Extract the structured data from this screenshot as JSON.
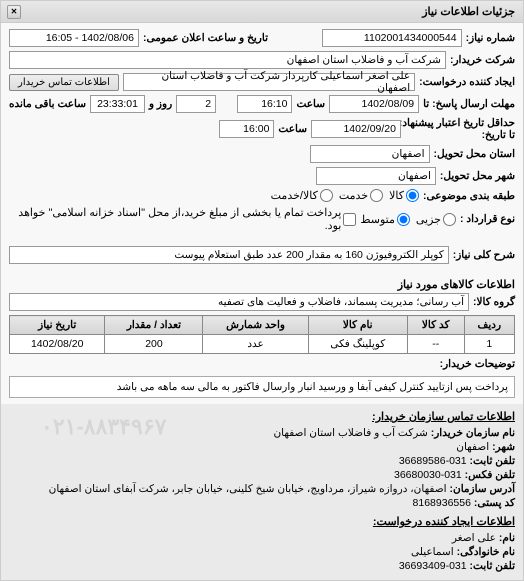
{
  "panel": {
    "title": "جزئیات اطلاعات نیاز"
  },
  "header": {
    "req_no_label": "شماره نیاز:",
    "req_no": "1102001434000544",
    "pub_dt_label": "تاریخ و ساعت اعلان عمومی:",
    "pub_dt": "1402/08/06 - 16:05",
    "buyer_label": "شرکت خریدار:",
    "buyer": "شرکت آب و فاضلاب استان اصفهان",
    "creator_label": "ایجاد کننده درخواست:",
    "creator": "علی اصغر اسماعیلی کارپرداز شرکت آب و فاضلاب استان اصفهان",
    "contact_btn": "اطلاعات تماس خریدار",
    "deadline_label": "مهلت ارسال پاسخ: تا",
    "deadline_date": "1402/08/09",
    "deadline_time_label": "ساعت",
    "deadline_time": "16:10",
    "remain_days": "2",
    "remain_days_label": "روز و",
    "remain_time": "23:33:01",
    "remain_tail": "ساعت باقی مانده",
    "min_valid_label": "حداقل تاریخ اعتبار پیشنهاد:",
    "min_valid_label_tail": "تا تاریخ:",
    "min_valid_date": "1402/09/20",
    "min_valid_time_label": "ساعت",
    "min_valid_time": "16:00",
    "deliver_prov_label": "استان محل تحویل:",
    "deliver_prov": "اصفهان",
    "deliver_city_label": "شهر محل تحویل:",
    "deliver_city": "اصفهان",
    "budget_label": "طبقه بندی موضوعی:",
    "budget_opts": {
      "goods": "کالا",
      "service": "خدمت",
      "goods_service": "کالا/خدمت"
    },
    "amount_label": "نوع قرارداد :",
    "amount_opts": {
      "small": "جزیی",
      "medium": "متوسط"
    },
    "amount_note": "پرداخت تمام یا بخشی از مبلغ خرید،از محل \"اسناد خزانه اسلامی\" خواهد بود."
  },
  "need": {
    "title_label": "شرح کلی نیاز:",
    "title": "کوپلر الکتروفیوژن 160 به مقدار 200 عدد طبق استعلام پیوست"
  },
  "goods": {
    "section": "اطلاعات کالاهای مورد نیاز",
    "group_label": "گروه کالا:",
    "group": "آب رسانی؛ مدیریت پسماند، فاضلاب و فعالیت های تصفیه",
    "columns": [
      "ردیف",
      "کد کالا",
      "نام کالا",
      "واحد شمارش",
      "تعداد / مقدار",
      "تاریخ نیاز"
    ],
    "rows": [
      [
        "1",
        "--",
        "کوپلینگ فکی",
        "عدد",
        "200",
        "1402/08/20"
      ]
    ]
  },
  "buyer_remark": {
    "label": "توضیحات خریدار:",
    "text": "پرداخت پس ازتایید کنترل کیفی آبفا و ورسید انبار وارسال فاکتور به مالی سه ماهه می باشد"
  },
  "contact": {
    "section": "اطلاعات تماس سازمان خریدار:",
    "org_label": "نام سازمان خریدار:",
    "org": "شرکت آب و فاضلاب استان اصفهان",
    "city_label": "شهر:",
    "city": "اصفهان",
    "tel_label": "تلفن ثابت:",
    "tel": "031-36689586",
    "fax_label": "تلفن فکس:",
    "fax": "031-36680030",
    "addr_label": "آدرس سازمان:",
    "addr": "اصفهان، دروازه شیراز، مرداویج، خیابان شیخ کلینی، خیابان جابر، شرکت آبفای استان اصفهان",
    "post_label": "کد پستی:",
    "post": "8168936556",
    "creator_section": "اطلاعات ایجاد کننده درخواست:",
    "name_label": "نام:",
    "name": "علی اصغر",
    "lname_label": "نام خانوادگی:",
    "lname": "اسماعیلی",
    "phone_label": "تلفن ثابت:",
    "phone": "031-36693409",
    "watermark": "۰۲۱-۸۸۳۴۹۶۷"
  }
}
